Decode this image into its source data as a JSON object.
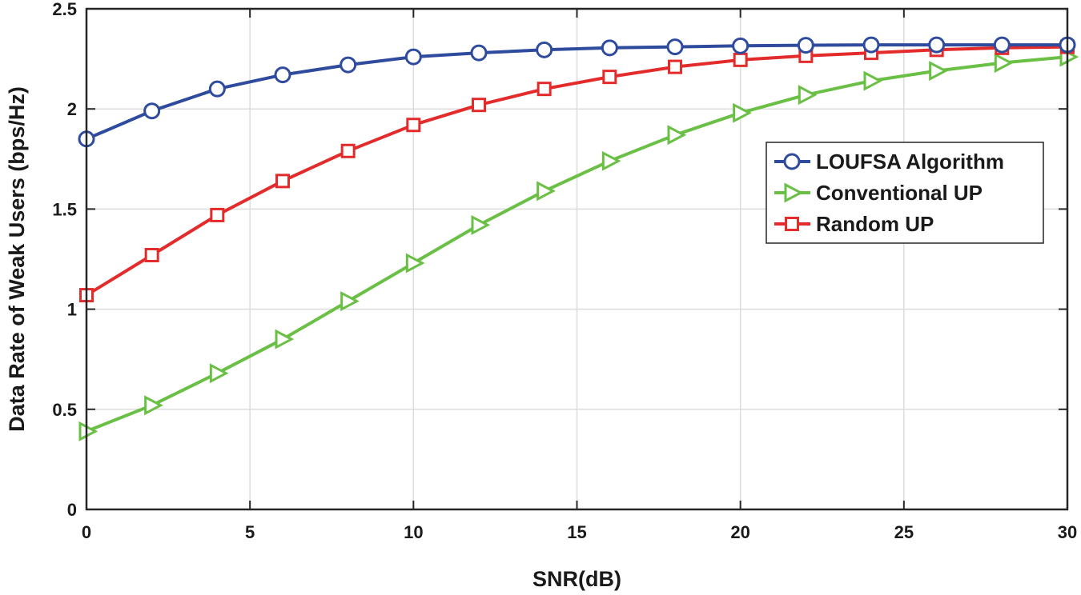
{
  "chart_data": {
    "type": "line",
    "xlabel": "SNR(dB)",
    "ylabel": "Data Rate of Weak Users (bps/Hz)",
    "xlim": [
      0,
      30
    ],
    "ylim": [
      0,
      2.5
    ],
    "xticks": [
      0,
      5,
      10,
      15,
      20,
      25,
      30
    ],
    "xtick_labels": [
      "0",
      "5",
      "10",
      "15",
      "20",
      "25",
      "30"
    ],
    "yticks": [
      0,
      0.5,
      1,
      1.5,
      2,
      2.5
    ],
    "ytick_labels": [
      "0",
      "0.5",
      "1",
      "1.5",
      "2",
      "2.5"
    ],
    "grid": true,
    "legend_position": "center-right",
    "x": [
      0,
      2,
      4,
      6,
      8,
      10,
      12,
      14,
      16,
      18,
      20,
      22,
      24,
      26,
      28,
      30
    ],
    "series": [
      {
        "name": "LOUFSA Algorithm",
        "color": "#2e4b9e",
        "marker": "circle",
        "values": [
          1.85,
          1.99,
          2.1,
          2.17,
          2.22,
          2.26,
          2.28,
          2.295,
          2.305,
          2.31,
          2.315,
          2.318,
          2.32,
          2.32,
          2.32,
          2.32
        ]
      },
      {
        "name": "Conventional UP",
        "color": "#6abf45",
        "marker": "triangle-right",
        "values": [
          0.39,
          0.52,
          0.68,
          0.85,
          1.04,
          1.23,
          1.42,
          1.59,
          1.74,
          1.87,
          1.98,
          2.07,
          2.14,
          2.19,
          2.23,
          2.26
        ]
      },
      {
        "name": "Random UP",
        "color": "#e32b2b",
        "marker": "square",
        "values": [
          1.07,
          1.27,
          1.47,
          1.64,
          1.79,
          1.92,
          2.02,
          2.1,
          2.16,
          2.21,
          2.245,
          2.265,
          2.28,
          2.295,
          2.305,
          2.31
        ]
      }
    ]
  }
}
